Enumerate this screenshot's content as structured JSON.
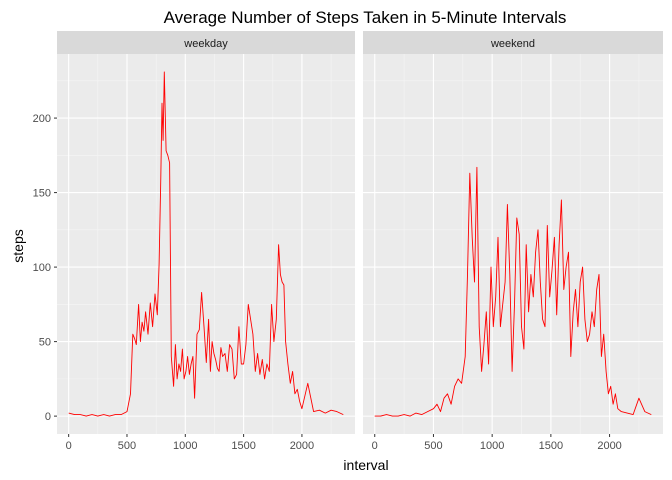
{
  "chart_data": {
    "type": "line",
    "title": "Average Number of Steps Taken in 5-Minute Intervals",
    "xlabel": "interval",
    "ylabel": "steps",
    "xlim": [
      -100,
      2455
    ],
    "ylim": [
      -12,
      243
    ],
    "x_ticks": [
      0,
      500,
      1000,
      1500,
      2000
    ],
    "y_ticks": [
      0,
      50,
      100,
      150,
      200
    ],
    "grid": true,
    "line_color": "#ff0000",
    "panel_bg": "#ebebeb",
    "strip_bg": "#d9d9d9",
    "facets": [
      {
        "name": "weekday",
        "x": [
          0,
          50,
          100,
          150,
          200,
          250,
          300,
          350,
          400,
          450,
          500,
          530,
          550,
          565,
          580,
          600,
          615,
          630,
          645,
          660,
          680,
          700,
          720,
          740,
          760,
          775,
          790,
          800,
          810,
          820,
          835,
          850,
          865,
          880,
          900,
          915,
          930,
          945,
          960,
          975,
          990,
          1005,
          1020,
          1035,
          1050,
          1065,
          1080,
          1100,
          1120,
          1140,
          1160,
          1180,
          1200,
          1215,
          1230,
          1245,
          1260,
          1275,
          1290,
          1305,
          1320,
          1340,
          1360,
          1380,
          1400,
          1420,
          1440,
          1460,
          1480,
          1500,
          1520,
          1540,
          1560,
          1580,
          1600,
          1620,
          1640,
          1660,
          1680,
          1700,
          1720,
          1740,
          1760,
          1780,
          1800,
          1815,
          1830,
          1845,
          1860,
          1880,
          1900,
          1920,
          1940,
          1960,
          1980,
          2000,
          2050,
          2100,
          2150,
          2200,
          2250,
          2300,
          2355
        ],
        "y": [
          2,
          1,
          1,
          0,
          1,
          0,
          1,
          0,
          1,
          1,
          3,
          15,
          55,
          52,
          48,
          75,
          50,
          63,
          57,
          70,
          55,
          76,
          60,
          82,
          68,
          102,
          160,
          210,
          185,
          231,
          178,
          175,
          170,
          40,
          20,
          48,
          25,
          35,
          30,
          45,
          25,
          30,
          40,
          28,
          35,
          40,
          12,
          55,
          58,
          83,
          60,
          36,
          65,
          30,
          50,
          42,
          38,
          32,
          30,
          46,
          40,
          42,
          30,
          48,
          45,
          25,
          28,
          60,
          35,
          35,
          48,
          75,
          65,
          55,
          30,
          42,
          28,
          38,
          25,
          35,
          30,
          75,
          50,
          65,
          115,
          95,
          90,
          88,
          50,
          35,
          22,
          30,
          15,
          18,
          10,
          5,
          22,
          3,
          4,
          2,
          4,
          3,
          1
        ]
      },
      {
        "name": "weekend",
        "x": [
          0,
          50,
          100,
          150,
          200,
          250,
          300,
          350,
          400,
          450,
          500,
          530,
          560,
          590,
          620,
          650,
          680,
          710,
          740,
          770,
          790,
          810,
          830,
          850,
          870,
          890,
          910,
          930,
          950,
          970,
          990,
          1010,
          1030,
          1050,
          1070,
          1090,
          1110,
          1130,
          1150,
          1170,
          1190,
          1210,
          1230,
          1250,
          1270,
          1290,
          1310,
          1330,
          1350,
          1370,
          1390,
          1410,
          1430,
          1450,
          1470,
          1490,
          1510,
          1530,
          1550,
          1570,
          1590,
          1610,
          1630,
          1650,
          1670,
          1690,
          1710,
          1730,
          1750,
          1770,
          1790,
          1810,
          1830,
          1850,
          1870,
          1890,
          1910,
          1930,
          1950,
          1970,
          1990,
          2010,
          2030,
          2050,
          2070,
          2100,
          2150,
          2200,
          2250,
          2300,
          2355
        ],
        "y": [
          0,
          0,
          1,
          0,
          0,
          1,
          0,
          2,
          1,
          3,
          5,
          8,
          3,
          12,
          15,
          8,
          20,
          25,
          22,
          40,
          95,
          163,
          120,
          90,
          167,
          60,
          30,
          48,
          70,
          35,
          100,
          60,
          80,
          120,
          60,
          75,
          90,
          142,
          95,
          30,
          75,
          133,
          122,
          60,
          45,
          115,
          70,
          95,
          80,
          110,
          125,
          90,
          65,
          60,
          128,
          80,
          98,
          120,
          68,
          115,
          145,
          85,
          100,
          110,
          40,
          70,
          85,
          60,
          90,
          100,
          65,
          50,
          55,
          70,
          60,
          85,
          95,
          40,
          55,
          30,
          15,
          20,
          8,
          15,
          5,
          3,
          2,
          1,
          12,
          3,
          1
        ]
      }
    ]
  }
}
